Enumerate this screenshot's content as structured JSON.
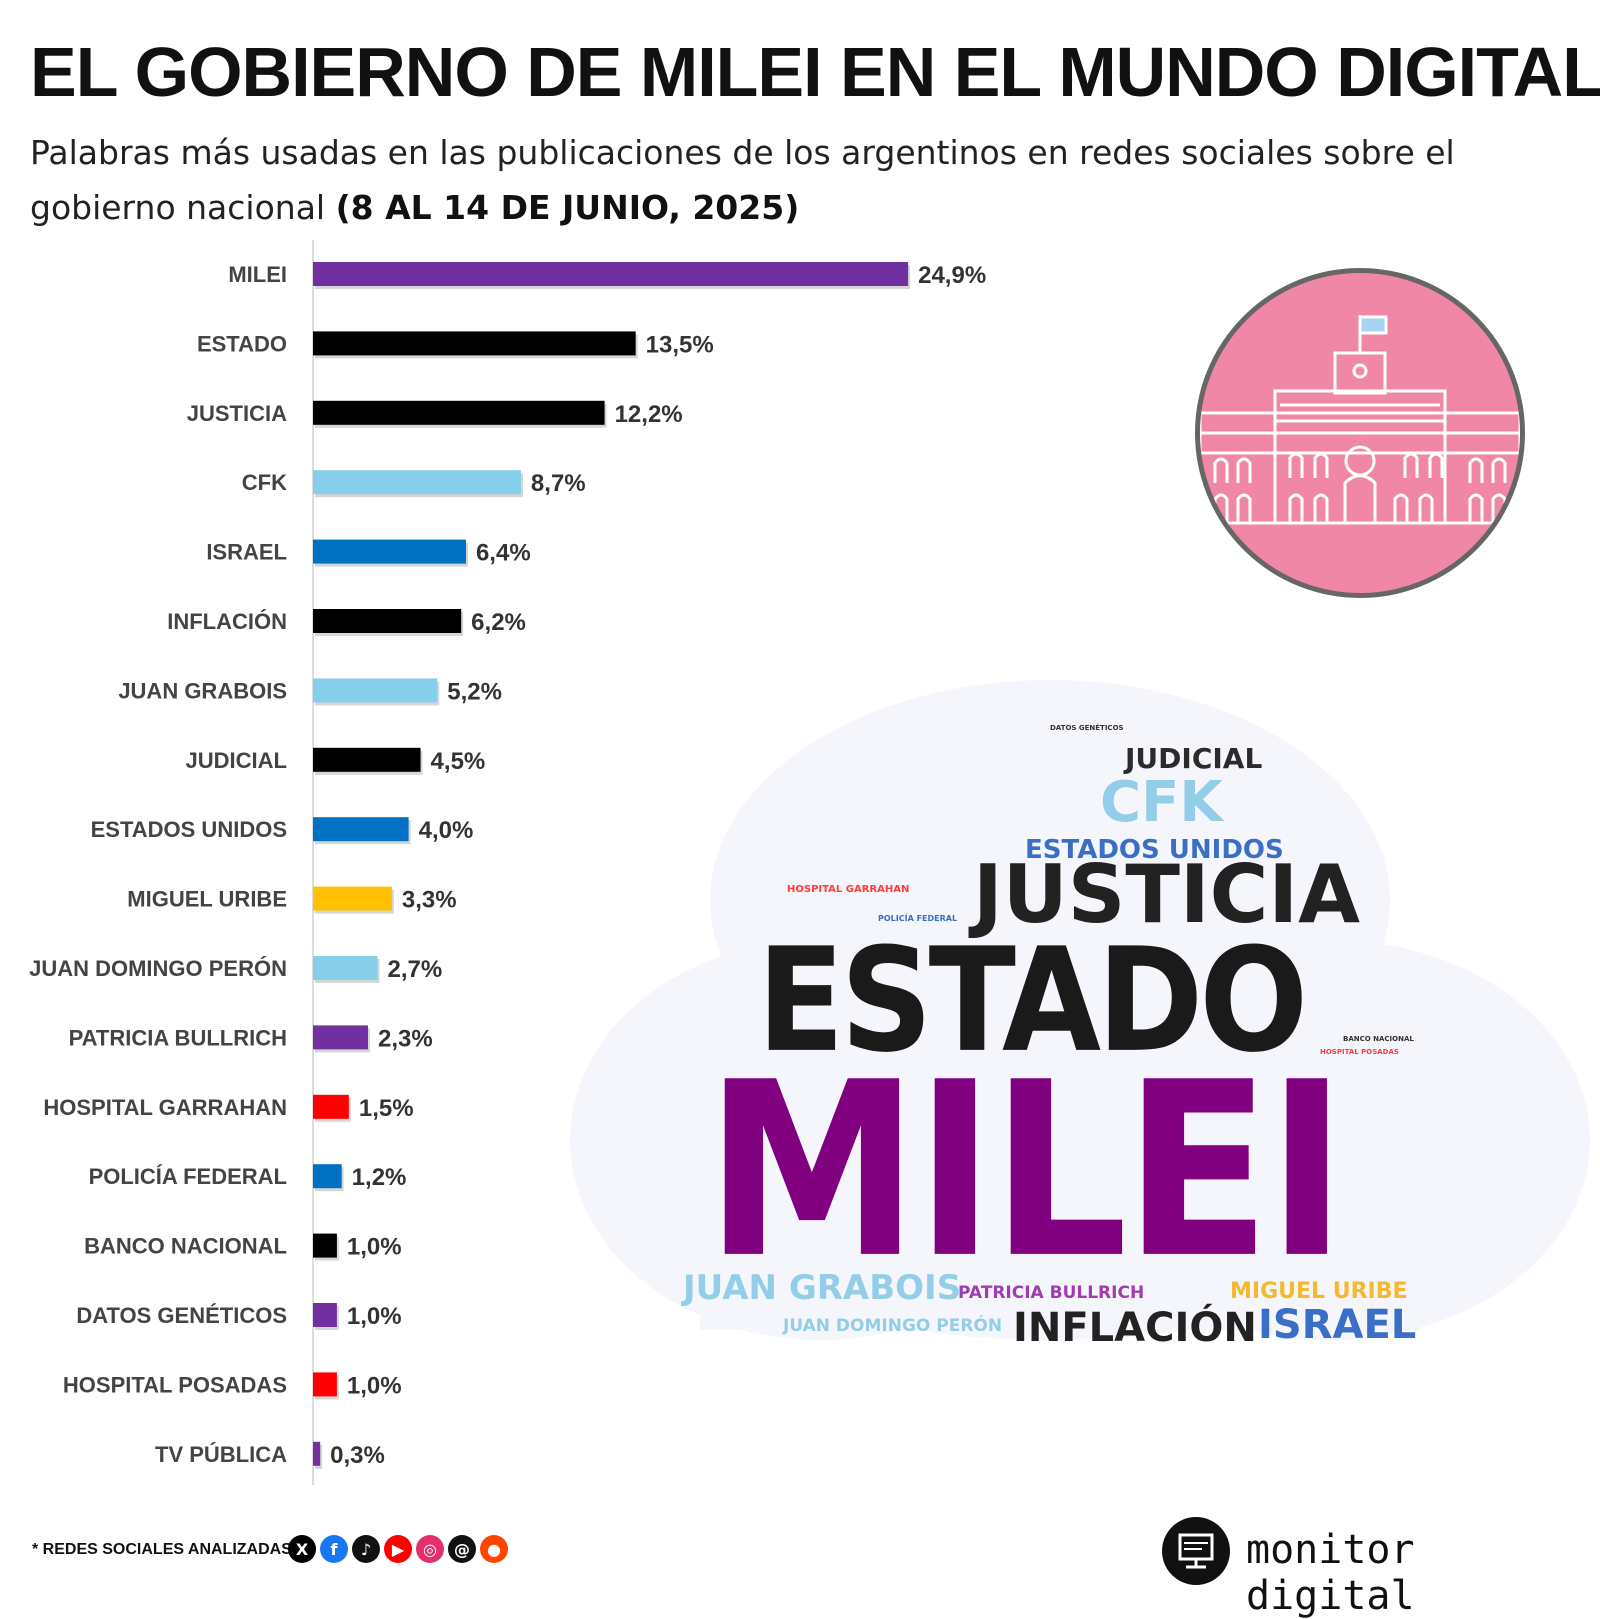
{
  "title": "EL GOBIERNO DE MILEI EN EL MUNDO DIGITAL",
  "subtitle": "Palabras más usadas en las publicaciones de los argentinos en redes sociales sobre el gobierno nacional",
  "subtitle_period": "(8 AL 14 DE JUNIO, 2025)",
  "chart_data": {
    "type": "bar",
    "orientation": "horizontal",
    "title": "",
    "xlabel": "",
    "ylabel": "",
    "xlim": [
      0,
      25
    ],
    "categories": [
      "MILEI",
      "ESTADO",
      "JUSTICIA",
      "CFK",
      "ISRAEL",
      "INFLACIÓN",
      "JUAN GRABOIS",
      "JUDICIAL",
      "ESTADOS UNIDOS",
      "MIGUEL URIBE",
      "JUAN DOMINGO PERÓN",
      "PATRICIA BULLRICH",
      "HOSPITAL GARRAHAN",
      "POLICÍA FEDERAL",
      "BANCO NACIONAL",
      "DATOS GENÉTICOS",
      "HOSPITAL POSADAS",
      "TV PÚBLICA"
    ],
    "values": [
      24.9,
      13.5,
      12.2,
      8.7,
      6.4,
      6.2,
      5.2,
      4.5,
      4.0,
      3.3,
      2.7,
      2.3,
      1.5,
      1.2,
      1.0,
      1.0,
      1.0,
      0.3
    ],
    "value_labels": [
      "24,9%",
      "13,5%",
      "12,2%",
      "8,7%",
      "6,4%",
      "6,2%",
      "5,2%",
      "4,5%",
      "4,0%",
      "3,3%",
      "2,7%",
      "2,3%",
      "1,5%",
      "1,2%",
      "1,0%",
      "1,0%",
      "1,0%",
      "0,3%"
    ],
    "colors": [
      "#7030a0",
      "#000000",
      "#000000",
      "#87ceeb",
      "#0070c0",
      "#000000",
      "#87ceeb",
      "#000000",
      "#0070c0",
      "#ffc000",
      "#87ceeb",
      "#7030a0",
      "#ff0000",
      "#0070c0",
      "#000000",
      "#7030a0",
      "#ff0000",
      "#7030a0"
    ]
  },
  "wordcloud": [
    {
      "text": "DATOS GENÉTICOS",
      "color": "#333333"
    },
    {
      "text": "JUDICIAL",
      "color": "#2b2b2b"
    },
    {
      "text": "CFK",
      "color": "#93cde8"
    },
    {
      "text": "ESTADOS UNIDOS",
      "color": "#3b6fc6"
    },
    {
      "text": "HOSPITAL GARRAHAN",
      "color": "#ff3b3b"
    },
    {
      "text": "POLICÍA FEDERAL",
      "color": "#3b6fc6"
    },
    {
      "text": "JUSTICIA",
      "color": "#222222"
    },
    {
      "text": "ESTADO",
      "color": "#1a1a1a"
    },
    {
      "text": "BANCO NACIONAL",
      "color": "#333333"
    },
    {
      "text": "HOSPITAL POSADAS",
      "color": "#ff3b3b"
    },
    {
      "text": "MILEI",
      "color": "#800080"
    },
    {
      "text": "JUAN GRABOIS",
      "color": "#93cde8"
    },
    {
      "text": "PATRICIA BULLRICH",
      "color": "#a03cb0"
    },
    {
      "text": "MIGUEL URIBE",
      "color": "#f5b82e"
    },
    {
      "text": "JUAN DOMINGO PERÓN",
      "color": "#93cde8"
    },
    {
      "text": "INFLACIÓN",
      "color": "#222222"
    },
    {
      "text": "ISRAEL",
      "color": "#3b6fc6"
    }
  ],
  "footer": {
    "note": "* REDES SOCIALES ANALIZADAS",
    "networks": [
      {
        "glyph": "X",
        "color": "#000000"
      },
      {
        "glyph": "f",
        "color": "#1877f2"
      },
      {
        "glyph": "♪",
        "color": "#111111"
      },
      {
        "glyph": "▶",
        "color": "#ff0000"
      },
      {
        "glyph": "◎",
        "color": "#e1306c"
      },
      {
        "glyph": "@",
        "color": "#111111"
      },
      {
        "glyph": "●",
        "color": "#ff4500"
      }
    ],
    "brand": "monitor digital"
  }
}
